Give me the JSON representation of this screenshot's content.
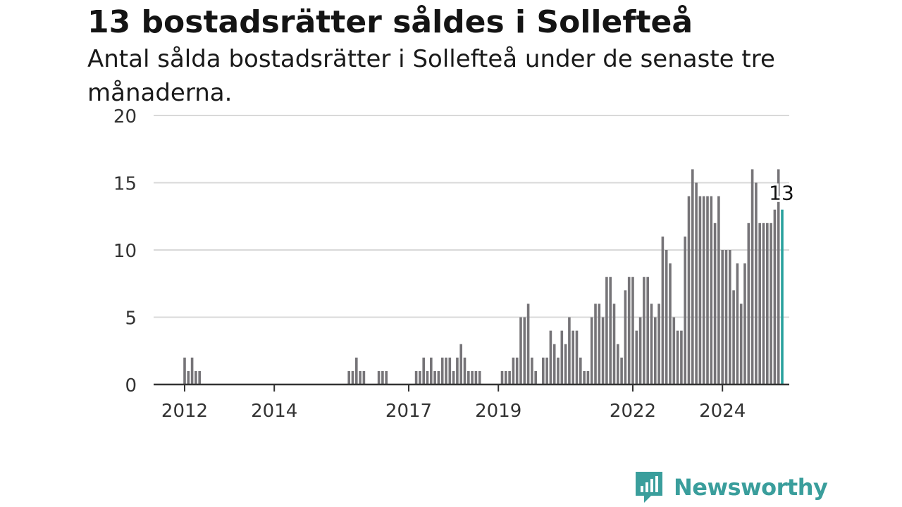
{
  "title": "13 bostadsrätter såldes i Sollefteå",
  "subtitle": "Antal sålda bostadsrätter i Sollefteå under de senaste tre månaderna.",
  "brand": {
    "name": "Newsworthy",
    "color": "#3a9e9c",
    "icon": "newsworthy-logo-icon"
  },
  "chart_data": {
    "type": "bar",
    "title": "13 bostadsrätter såldes i Sollefteå",
    "xlabel": "",
    "ylabel": "",
    "ylim": [
      0,
      20
    ],
    "yticks": [
      0,
      5,
      10,
      15,
      20
    ],
    "xticks": [
      "2012",
      "2014",
      "2017",
      "2019",
      "2022",
      "2024"
    ],
    "grid": true,
    "bar_color": "#767478",
    "highlight_color": "#2aa19e",
    "annotation": {
      "text": "13"
    },
    "series": [
      {
        "name": "",
        "values": [
          2,
          1,
          2,
          1,
          1,
          0,
          0,
          0,
          0,
          0,
          0,
          0,
          0,
          0,
          0,
          0,
          0,
          0,
          0,
          0,
          0,
          0,
          0,
          0,
          0,
          0,
          0,
          0,
          0,
          0,
          0,
          0,
          0,
          0,
          0,
          0,
          0,
          0,
          0,
          0,
          0,
          0,
          0,
          0,
          1,
          1,
          2,
          1,
          1,
          0,
          0,
          0,
          1,
          1,
          1,
          0,
          0,
          0,
          0,
          0,
          0,
          0,
          1,
          1,
          2,
          1,
          2,
          1,
          1,
          2,
          2,
          2,
          1,
          2,
          3,
          2,
          1,
          1,
          1,
          1,
          0,
          0,
          0,
          0,
          0,
          1,
          1,
          1,
          2,
          2,
          5,
          5,
          6,
          2,
          1,
          0,
          2,
          2,
          4,
          3,
          2,
          4,
          3,
          5,
          4,
          4,
          2,
          1,
          1,
          5,
          6,
          6,
          5,
          8,
          8,
          6,
          3,
          2,
          7,
          8,
          8,
          4,
          5,
          8,
          8,
          6,
          5,
          6,
          11,
          10,
          9,
          5,
          4,
          4,
          11,
          14,
          16,
          15,
          14,
          14,
          14,
          14,
          12,
          14,
          10,
          10,
          10,
          7,
          9,
          6,
          9,
          12,
          16,
          15,
          12,
          12,
          12,
          12,
          13,
          16,
          13
        ]
      }
    ]
  }
}
